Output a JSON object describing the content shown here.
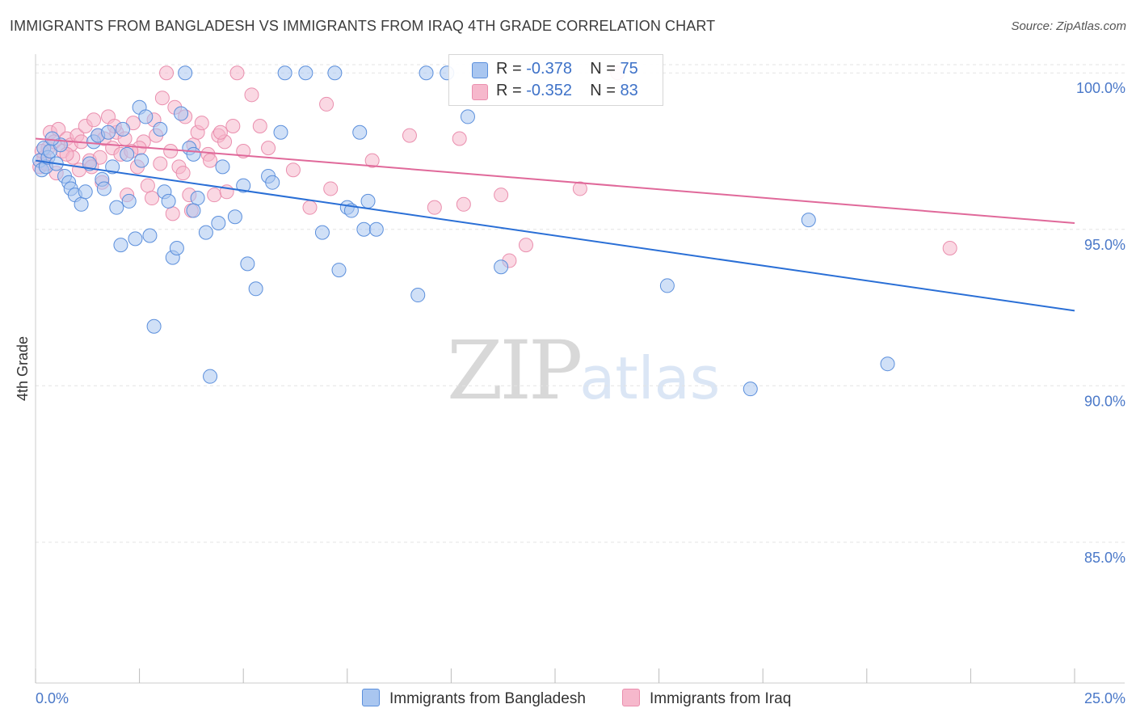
{
  "title": "IMMIGRANTS FROM BANGLADESH VS IMMIGRANTS FROM IRAQ 4TH GRADE CORRELATION CHART",
  "source": "Source: ZipAtlas.com",
  "watermark": {
    "zip": "ZIP",
    "atlas": "atlas"
  },
  "legend": {
    "r_label": "R =",
    "n_label": "N =",
    "series": [
      {
        "r": "-0.378",
        "n": "75"
      },
      {
        "r": "-0.352",
        "n": "83"
      }
    ]
  },
  "colors": {
    "bangladesh_fill": "#a9c6f0",
    "bangladesh_stroke": "#5b8fdc",
    "bangladesh_line": "#2a6fd6",
    "iraq_fill": "#f6b8cc",
    "iraq_stroke": "#ea8fae",
    "iraq_line": "#e0699a",
    "axis_label": "#4a78c8",
    "grid": "#e3e3e3"
  },
  "chart_data": {
    "type": "scatter",
    "title": "IMMIGRANTS FROM BANGLADESH VS IMMIGRANTS FROM IRAQ 4TH GRADE CORRELATION CHART",
    "xlabel": "",
    "ylabel": "4th Grade",
    "xlim": [
      0,
      25
    ],
    "ylim": [
      80.5,
      100.6
    ],
    "x_tick_labels": [
      "0.0%",
      "25.0%"
    ],
    "y_ticks": [
      85,
      90,
      95,
      100
    ],
    "y_tick_labels": [
      "85.0%",
      "90.0%",
      "95.0%",
      "100.0%"
    ],
    "grid": true,
    "legend_position": "top-center",
    "series": [
      {
        "name": "Immigrants from Bangladesh",
        "r": -0.378,
        "n": 75,
        "trend": {
          "x": [
            0,
            25
          ],
          "y": [
            97.2,
            92.4
          ]
        },
        "points": [
          [
            0.1,
            97.2
          ],
          [
            0.15,
            96.9
          ],
          [
            0.2,
            97.6
          ],
          [
            0.25,
            97.0
          ],
          [
            0.3,
            97.3
          ],
          [
            0.35,
            97.5
          ],
          [
            0.5,
            97.1
          ],
          [
            0.6,
            97.7
          ],
          [
            0.7,
            96.7
          ],
          [
            0.8,
            96.5
          ],
          [
            0.85,
            96.3
          ],
          [
            0.95,
            96.1
          ],
          [
            1.1,
            95.8
          ],
          [
            1.2,
            96.2
          ],
          [
            1.3,
            97.1
          ],
          [
            1.4,
            97.8
          ],
          [
            1.5,
            98.0
          ],
          [
            1.6,
            96.6
          ],
          [
            1.65,
            96.3
          ],
          [
            1.75,
            98.1
          ],
          [
            1.85,
            97.0
          ],
          [
            1.95,
            95.7
          ],
          [
            2.05,
            94.5
          ],
          [
            2.2,
            97.4
          ],
          [
            2.25,
            95.9
          ],
          [
            2.4,
            94.7
          ],
          [
            2.5,
            98.9
          ],
          [
            2.55,
            97.2
          ],
          [
            2.65,
            98.6
          ],
          [
            2.75,
            94.8
          ],
          [
            2.85,
            91.9
          ],
          [
            3.0,
            98.2
          ],
          [
            3.1,
            96.2
          ],
          [
            3.2,
            95.9
          ],
          [
            3.3,
            94.1
          ],
          [
            3.4,
            94.4
          ],
          [
            3.5,
            98.7
          ],
          [
            3.6,
            100.0
          ],
          [
            3.7,
            97.6
          ],
          [
            3.8,
            97.4
          ],
          [
            3.9,
            96.0
          ],
          [
            4.1,
            94.9
          ],
          [
            4.2,
            90.3
          ],
          [
            4.4,
            95.2
          ],
          [
            4.5,
            97.0
          ],
          [
            4.8,
            95.4
          ],
          [
            5.0,
            96.4
          ],
          [
            5.1,
            93.9
          ],
          [
            5.3,
            93.1
          ],
          [
            5.6,
            96.7
          ],
          [
            5.7,
            96.5
          ],
          [
            5.9,
            98.1
          ],
          [
            6.5,
            100.0
          ],
          [
            6.0,
            100.0
          ],
          [
            6.9,
            94.9
          ],
          [
            7.2,
            100.0
          ],
          [
            7.3,
            93.7
          ],
          [
            7.5,
            95.7
          ],
          [
            7.6,
            95.6
          ],
          [
            7.8,
            98.1
          ],
          [
            7.9,
            95.0
          ],
          [
            8.0,
            95.9
          ],
          [
            8.2,
            95.0
          ],
          [
            9.2,
            92.9
          ],
          [
            9.4,
            100.0
          ],
          [
            9.9,
            100.0
          ],
          [
            10.4,
            98.6
          ],
          [
            11.2,
            93.8
          ],
          [
            15.2,
            93.2
          ],
          [
            17.2,
            89.9
          ],
          [
            18.6,
            95.3
          ],
          [
            20.5,
            90.7
          ],
          [
            0.4,
            97.9
          ],
          [
            3.8,
            95.6
          ],
          [
            2.1,
            98.2
          ]
        ]
      },
      {
        "name": "Immigrants from Iraq",
        "r": -0.352,
        "n": 83,
        "trend": {
          "x": [
            0,
            25
          ],
          "y": [
            97.9,
            95.2
          ]
        },
        "points": [
          [
            0.1,
            97.0
          ],
          [
            0.2,
            97.3
          ],
          [
            0.3,
            97.6
          ],
          [
            0.35,
            98.1
          ],
          [
            0.45,
            97.8
          ],
          [
            0.55,
            98.2
          ],
          [
            0.65,
            97.5
          ],
          [
            0.75,
            97.9
          ],
          [
            0.85,
            97.7
          ],
          [
            0.9,
            97.3
          ],
          [
            1.0,
            98.0
          ],
          [
            1.1,
            97.8
          ],
          [
            1.2,
            98.3
          ],
          [
            1.3,
            97.2
          ],
          [
            1.4,
            98.5
          ],
          [
            1.5,
            98.0
          ],
          [
            1.55,
            97.3
          ],
          [
            1.65,
            97.9
          ],
          [
            1.75,
            98.6
          ],
          [
            1.85,
            97.6
          ],
          [
            1.95,
            98.1
          ],
          [
            2.05,
            97.4
          ],
          [
            2.15,
            97.9
          ],
          [
            2.2,
            96.1
          ],
          [
            2.35,
            98.4
          ],
          [
            2.45,
            97.0
          ],
          [
            2.6,
            97.8
          ],
          [
            2.7,
            96.4
          ],
          [
            2.8,
            96.0
          ],
          [
            2.9,
            98.0
          ],
          [
            3.0,
            97.1
          ],
          [
            3.05,
            99.2
          ],
          [
            3.15,
            100.0
          ],
          [
            3.25,
            97.5
          ],
          [
            3.35,
            98.9
          ],
          [
            3.45,
            97.0
          ],
          [
            3.55,
            96.8
          ],
          [
            3.6,
            98.6
          ],
          [
            3.7,
            96.1
          ],
          [
            3.8,
            97.7
          ],
          [
            3.9,
            98.1
          ],
          [
            4.0,
            98.4
          ],
          [
            4.15,
            97.4
          ],
          [
            4.3,
            96.1
          ],
          [
            4.4,
            98.0
          ],
          [
            4.55,
            97.8
          ],
          [
            4.6,
            96.2
          ],
          [
            4.75,
            98.3
          ],
          [
            4.85,
            100.0
          ],
          [
            5.0,
            97.5
          ],
          [
            5.2,
            99.3
          ],
          [
            5.4,
            98.3
          ],
          [
            5.6,
            97.6
          ],
          [
            6.6,
            95.7
          ],
          [
            7.0,
            99.0
          ],
          [
            7.1,
            96.3
          ],
          [
            9.0,
            98.0
          ],
          [
            9.6,
            95.7
          ],
          [
            10.2,
            97.9
          ],
          [
            10.3,
            95.8
          ],
          [
            11.2,
            96.1
          ],
          [
            11.4,
            94.0
          ],
          [
            11.8,
            94.5
          ],
          [
            13.1,
            96.3
          ],
          [
            14.0,
            100.0
          ],
          [
            22.0,
            94.4
          ],
          [
            0.25,
            97.1
          ],
          [
            0.5,
            96.8
          ],
          [
            1.05,
            96.9
          ],
          [
            2.5,
            97.6
          ],
          [
            3.3,
            95.5
          ],
          [
            4.2,
            97.2
          ],
          [
            0.75,
            97.4
          ],
          [
            1.35,
            97.0
          ],
          [
            1.9,
            98.3
          ],
          [
            2.3,
            97.5
          ],
          [
            2.85,
            98.5
          ],
          [
            3.75,
            95.6
          ],
          [
            4.45,
            98.1
          ],
          [
            6.2,
            96.9
          ],
          [
            8.1,
            97.2
          ],
          [
            0.15,
            97.5
          ],
          [
            1.6,
            96.5
          ]
        ]
      }
    ]
  }
}
